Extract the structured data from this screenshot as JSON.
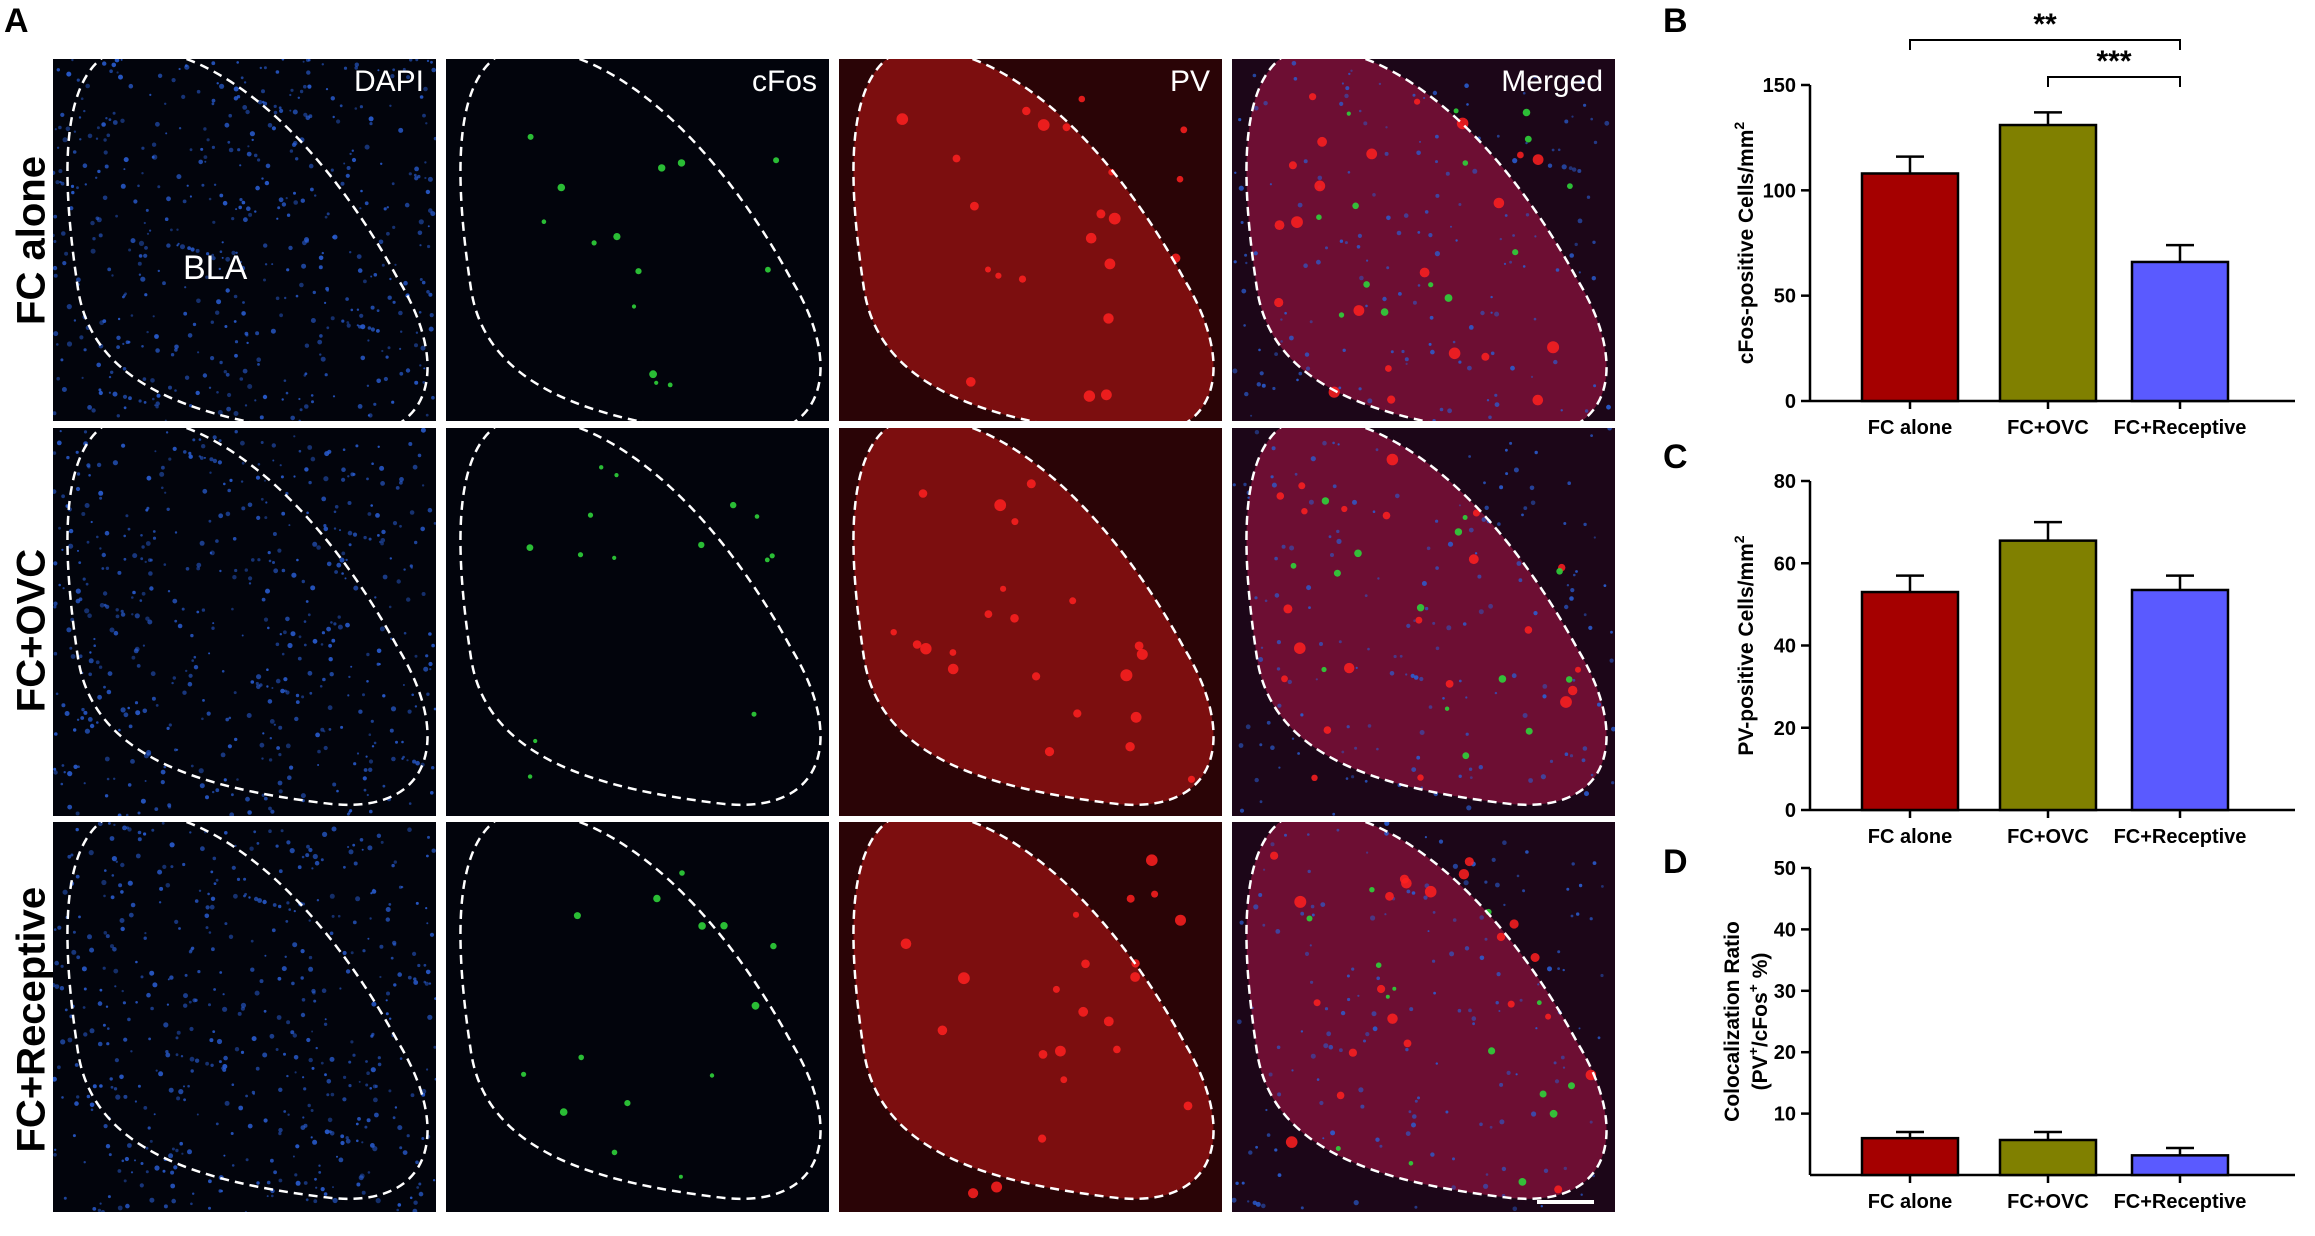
{
  "figure": {
    "panels": {
      "A": "A",
      "B": "B",
      "C": "C",
      "D": "D"
    },
    "channels": [
      "DAPI",
      "cFos",
      "PV",
      "Merged"
    ],
    "rows": [
      "FC alone",
      "FC+OVC",
      "FC+Receptive"
    ],
    "region_label": "BLA",
    "channel_colors": {
      "DAPI": "#2a5fd6",
      "cFos": "#2fd23a",
      "PV": "#e01818",
      "Merged": "#c01640"
    },
    "row_channel_images": [
      [
        {
          "channel": "DAPI",
          "label": "DAPI",
          "region_label": "BLA"
        },
        {
          "channel": "cFos",
          "label": "cFos"
        },
        {
          "channel": "PV",
          "label": "PV"
        },
        {
          "channel": "Merged",
          "label": "Merged"
        }
      ],
      [
        {
          "channel": "DAPI"
        },
        {
          "channel": "cFos"
        },
        {
          "channel": "PV"
        },
        {
          "channel": "Merged"
        }
      ],
      [
        {
          "channel": "DAPI"
        },
        {
          "channel": "cFos"
        },
        {
          "channel": "PV"
        },
        {
          "channel": "Merged",
          "scale_bar": true
        }
      ]
    ]
  },
  "chart_data": [
    {
      "panel": "B",
      "type": "bar",
      "categories": [
        "FC alone",
        "FC+OVC",
        "FC+Receptive"
      ],
      "series": [
        {
          "values": [
            108,
            131,
            66
          ],
          "errors": [
            8,
            6,
            8
          ]
        }
      ],
      "colors": [
        "#a50000",
        "#808000",
        "#5a5aff"
      ],
      "ylabel_main": "cFos-positive Cells/mm",
      "ylabel_sup": "2",
      "ylim": [
        0,
        150
      ],
      "yticks": [
        0,
        50,
        100,
        150
      ],
      "significance": [
        {
          "from": "FC alone",
          "to": "FC+Receptive",
          "label": "**"
        },
        {
          "from": "FC+OVC",
          "to": "FC+Receptive",
          "label": "***"
        }
      ]
    },
    {
      "panel": "C",
      "type": "bar",
      "categories": [
        "FC alone",
        "FC+OVC",
        "FC+Receptive"
      ],
      "series": [
        {
          "values": [
            53,
            65.5,
            53.5
          ],
          "errors": [
            4,
            4.5,
            3.5
          ]
        }
      ],
      "colors": [
        "#a50000",
        "#808000",
        "#5a5aff"
      ],
      "ylabel_main": "PV-positive Cells/mm",
      "ylabel_sup": "2",
      "ylim": [
        0,
        80
      ],
      "yticks": [
        0,
        20,
        40,
        60,
        80
      ]
    },
    {
      "panel": "D",
      "type": "bar",
      "categories": [
        "FC alone",
        "FC+OVC",
        "FC+Receptive"
      ],
      "series": [
        {
          "values": [
            6,
            5.7,
            3.2
          ],
          "errors": [
            1,
            1.3,
            1.2
          ]
        }
      ],
      "colors": [
        "#a50000",
        "#808000",
        "#5a5aff"
      ],
      "ylabel_line1": "Colocalization Ratio",
      "ylabel_line2": [
        "(PV",
        "+",
        "/cFos",
        "+",
        " %)"
      ],
      "ylim": [
        0,
        50
      ],
      "yticks": [
        10,
        20,
        30,
        40,
        50
      ]
    }
  ]
}
